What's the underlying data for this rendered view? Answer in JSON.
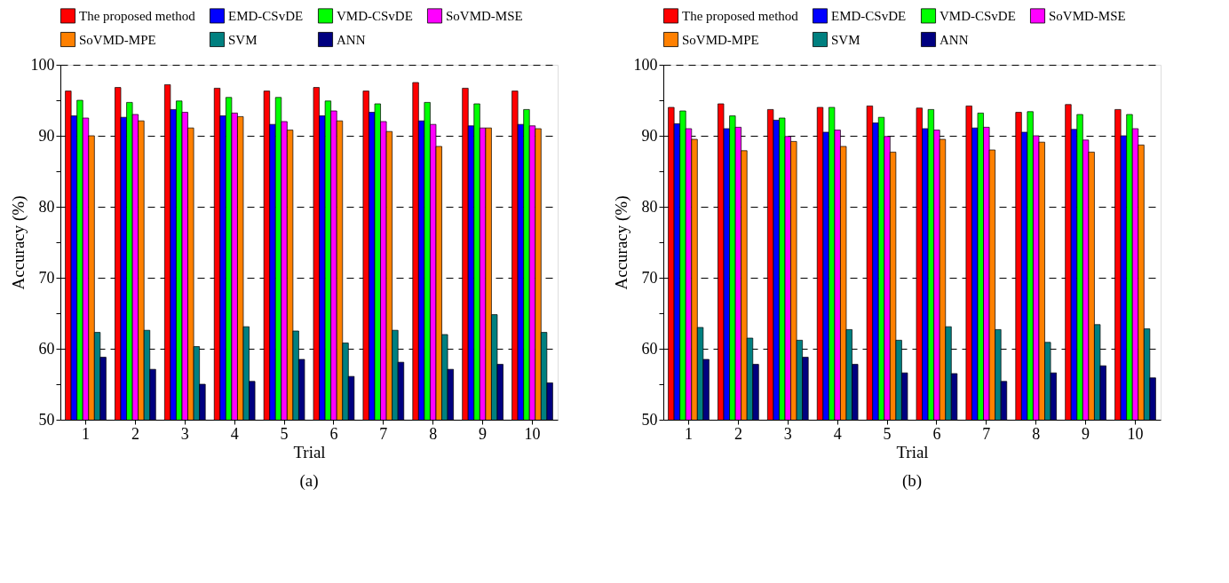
{
  "chart_data": [
    {
      "type": "bar",
      "xlabel": "Trial",
      "ylabel": "Accuracy (%)",
      "annotations": [
        "(a)"
      ],
      "categories": [
        "1",
        "2",
        "3",
        "4",
        "5",
        "6",
        "7",
        "8",
        "9",
        "10"
      ],
      "ylim": [
        50,
        100
      ],
      "yticks": [
        50,
        {
          "value": 55,
          "label": null
        },
        60,
        {
          "value": 65,
          "label": null
        },
        70,
        {
          "value": 75,
          "label": null
        },
        80,
        {
          "value": 85,
          "label": null
        },
        90,
        {
          "value": 95,
          "label": null
        },
        100
      ],
      "grid": "y",
      "legend": "top",
      "series": [
        {
          "name": "The proposed method",
          "color": "#ff0000",
          "values": [
            96.3,
            96.8,
            97.2,
            96.7,
            96.3,
            96.8,
            96.3,
            97.5,
            96.7,
            96.3
          ]
        },
        {
          "name": "EMD-CSvDE",
          "color": "#0000ff",
          "values": [
            92.8,
            92.6,
            93.7,
            92.8,
            91.6,
            92.8,
            93.3,
            92.1,
            91.4,
            91.6
          ]
        },
        {
          "name": "VMD-CSvDE",
          "color": "#00ff00",
          "values": [
            95.0,
            94.7,
            94.9,
            95.4,
            95.4,
            94.9,
            94.5,
            94.7,
            94.5,
            93.7
          ]
        },
        {
          "name": "SoVMD-MSE",
          "color": "#ff00ff",
          "values": [
            92.5,
            93.0,
            93.3,
            93.2,
            92.0,
            93.5,
            92.0,
            91.6,
            91.1,
            91.4
          ]
        },
        {
          "name": "SoVMD-MPE",
          "color": "#ff8000",
          "values": [
            90.0,
            92.1,
            91.1,
            92.7,
            90.8,
            92.1,
            90.6,
            88.5,
            91.1,
            91.0
          ]
        },
        {
          "name": "SVM",
          "color": "#008080",
          "values": [
            62.3,
            62.6,
            60.3,
            63.1,
            62.5,
            60.8,
            62.6,
            62.0,
            64.8,
            62.3
          ]
        },
        {
          "name": "ANN",
          "color": "#000080",
          "values": [
            58.8,
            57.1,
            55.0,
            55.4,
            58.5,
            56.1,
            58.1,
            57.1,
            57.8,
            55.2
          ]
        }
      ]
    },
    {
      "type": "bar",
      "xlabel": "Trial",
      "ylabel": "Accuracy (%)",
      "annotations": [
        "(b)"
      ],
      "categories": [
        "1",
        "2",
        "3",
        "4",
        "5",
        "6",
        "7",
        "8",
        "9",
        "10"
      ],
      "ylim": [
        50,
        100
      ],
      "yticks": [
        50,
        {
          "value": 55,
          "label": null
        },
        60,
        {
          "value": 65,
          "label": null
        },
        70,
        {
          "value": 75,
          "label": null
        },
        80,
        {
          "value": 85,
          "label": null
        },
        90,
        {
          "value": 95,
          "label": null
        },
        100
      ],
      "grid": "y",
      "legend": "top",
      "series": [
        {
          "name": "The proposed method",
          "color": "#ff0000",
          "values": [
            94.0,
            94.5,
            93.7,
            94.0,
            94.2,
            93.9,
            94.2,
            93.3,
            94.4,
            93.7
          ]
        },
        {
          "name": "EMD-CSvDE",
          "color": "#0000ff",
          "values": [
            91.7,
            91.0,
            92.2,
            90.5,
            91.8,
            91.0,
            91.1,
            90.5,
            90.9,
            90.0
          ]
        },
        {
          "name": "VMD-CSvDE",
          "color": "#00ff00",
          "values": [
            93.5,
            92.8,
            92.5,
            94.0,
            92.6,
            93.7,
            93.2,
            93.4,
            93.0,
            93.0
          ]
        },
        {
          "name": "SoVMD-MSE",
          "color": "#ff00ff",
          "values": [
            91.0,
            91.2,
            89.9,
            90.8,
            89.9,
            90.8,
            91.2,
            90.0,
            89.4,
            91.0
          ]
        },
        {
          "name": "SoVMD-MPE",
          "color": "#ff8000",
          "values": [
            89.5,
            87.9,
            89.2,
            88.5,
            87.7,
            89.5,
            88.0,
            89.1,
            87.7,
            88.7
          ]
        },
        {
          "name": "SVM",
          "color": "#008080",
          "values": [
            63.0,
            61.5,
            61.2,
            62.7,
            61.2,
            63.1,
            62.7,
            60.9,
            63.4,
            62.8
          ]
        },
        {
          "name": "ANN",
          "color": "#000080",
          "values": [
            58.5,
            57.8,
            58.8,
            57.8,
            56.6,
            56.5,
            55.4,
            56.6,
            57.6,
            55.9
          ]
        }
      ]
    }
  ]
}
